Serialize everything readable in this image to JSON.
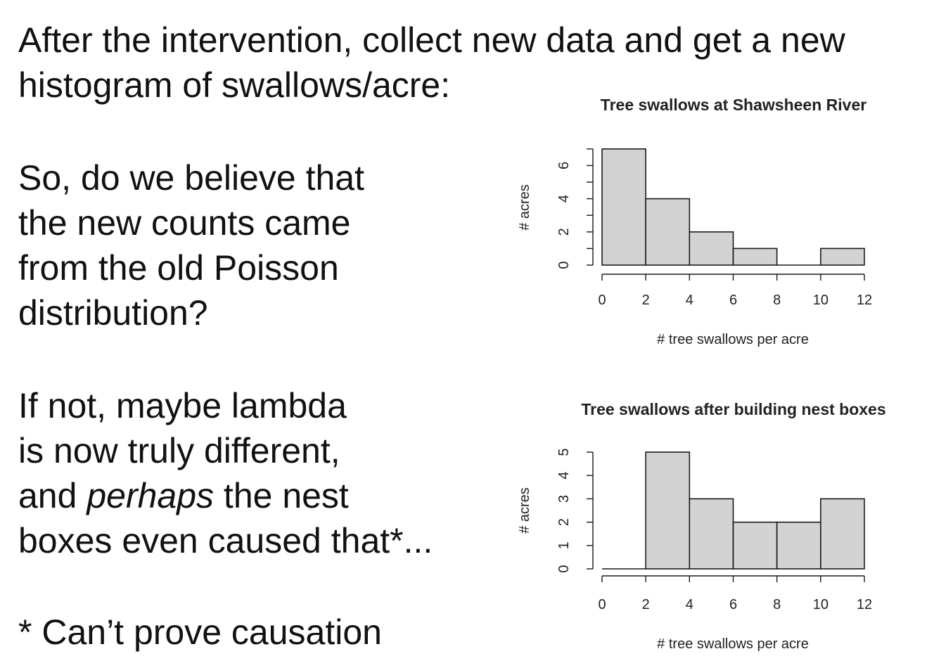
{
  "slide": {
    "heading_line1": "After the intervention, collect new data and get a new",
    "heading_line2": "histogram of swallows/acre:",
    "question_line1": "So, do we believe that",
    "question_line2": "the new counts came",
    "question_line3": "from the old Poisson",
    "question_line4": "distribution?",
    "answer_line1": "If not, maybe lambda",
    "answer_line2": "is now truly different,",
    "answer_line3_pre": "and ",
    "answer_line3_em": "perhaps",
    "answer_line3_post": " the nest",
    "answer_line4": "boxes even caused that*...",
    "footnote": "* Can’t prove causation"
  },
  "chart_data": [
    {
      "type": "bar",
      "title": "Tree swallows at Shawsheen River",
      "xlabel": "# tree swallows per acre",
      "ylabel": "# acres",
      "bins": [
        [
          0,
          2
        ],
        [
          2,
          4
        ],
        [
          4,
          6
        ],
        [
          6,
          8
        ],
        [
          8,
          10
        ],
        [
          10,
          12
        ]
      ],
      "values": [
        7,
        4,
        2,
        1,
        0,
        1
      ],
      "xticks": [
        "0",
        "2",
        "4",
        "6",
        "8",
        "10",
        "12"
      ],
      "yticks": [
        "0",
        "2",
        "4",
        "6"
      ],
      "xlim": [
        0,
        12
      ],
      "ylim": [
        0,
        7
      ],
      "bar_color": "#d3d3d3",
      "grid": false
    },
    {
      "type": "bar",
      "title": "Tree swallows after building nest boxes",
      "xlabel": "# tree swallows per acre",
      "ylabel": "# acres",
      "bins": [
        [
          0,
          2
        ],
        [
          2,
          4
        ],
        [
          4,
          6
        ],
        [
          6,
          8
        ],
        [
          8,
          10
        ],
        [
          10,
          12
        ]
      ],
      "values": [
        0,
        5,
        3,
        2,
        2,
        3
      ],
      "xticks": [
        "0",
        "2",
        "4",
        "6",
        "8",
        "10",
        "12"
      ],
      "yticks": [
        "0",
        "1",
        "2",
        "3",
        "4",
        "5"
      ],
      "xlim": [
        0,
        12
      ],
      "ylim": [
        0,
        5
      ],
      "bar_color": "#d3d3d3",
      "grid": false
    }
  ]
}
